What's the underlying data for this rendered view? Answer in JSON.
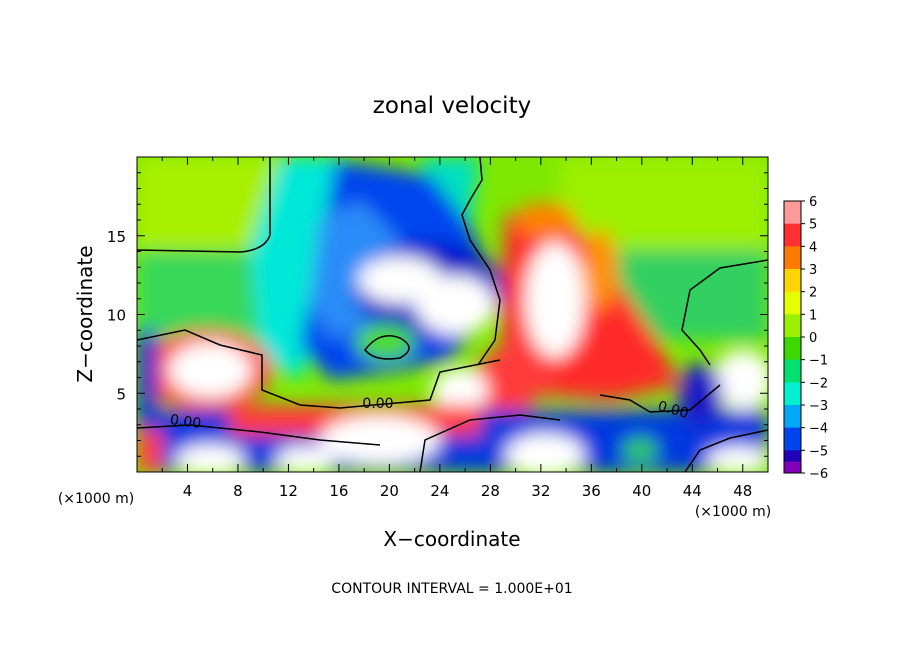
{
  "chart_data": {
    "type": "heatmap",
    "title": "zonal velocity",
    "xlabel": "X−coordinate",
    "ylabel": "Z−coordinate",
    "x_unit_left": "(×1000 m)",
    "x_unit_right": "(×1000 m)",
    "footer": "CONTOUR INTERVAL = 1.000E+01",
    "xlim": [
      0,
      50
    ],
    "ylim": [
      0,
      20
    ],
    "x_ticks": [
      "4",
      "8",
      "12",
      "16",
      "20",
      "24",
      "28",
      "32",
      "36",
      "40",
      "44",
      "48"
    ],
    "y_ticks": [
      "5",
      "10",
      "15"
    ],
    "contour_labels": [
      "0.00",
      "0.00",
      "0.00"
    ],
    "colorbar": {
      "ticks": [
        "6",
        "5",
        "4",
        "3",
        "2",
        "1",
        "0",
        "−1",
        "−2",
        "−3",
        "−4",
        "−5",
        "−6"
      ],
      "colors": [
        "#ff9a9a",
        "#ff3030",
        "#ff7a00",
        "#ffd400",
        "#e6ff00",
        "#99f000",
        "#3cd800",
        "#00e070",
        "#00f0d0",
        "#00a8f8",
        "#0044ee",
        "#2000b8",
        "#8000b8"
      ],
      "above": "#ffffff"
    }
  }
}
